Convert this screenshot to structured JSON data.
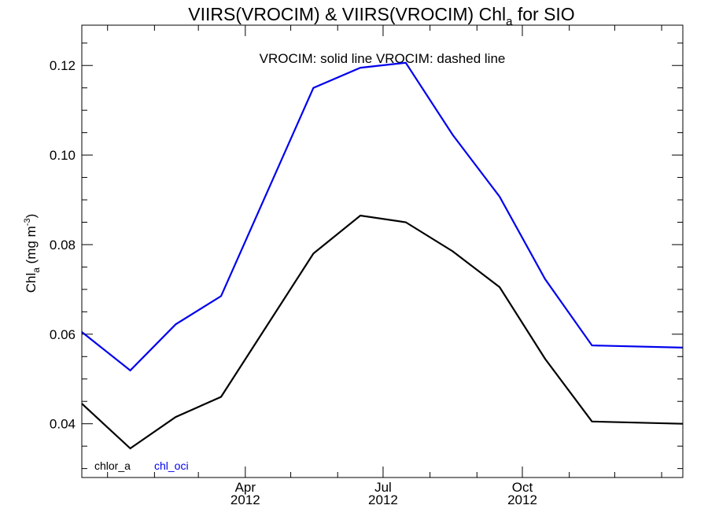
{
  "chart_data": {
    "type": "line",
    "title": {
      "main": "VIIRS(VROCIM) & VIIRS(VROCIM)  Chl",
      "sub": "a",
      "tail": " for SIO"
    },
    "annotation": "VROCIM: solid line   VROCIM: dashed line",
    "ylabel": {
      "main": "Chl",
      "sub": "a",
      "unit_open": " (mg m",
      "sup": "-3",
      "unit_close": ")"
    },
    "ylim": [
      0.028,
      0.129
    ],
    "yticks": [
      {
        "value": 0.04,
        "label": "0.04"
      },
      {
        "value": 0.06,
        "label": "0.06"
      },
      {
        "value": 0.08,
        "label": "0.08"
      },
      {
        "value": 0.1,
        "label": "0.10"
      },
      {
        "value": 0.12,
        "label": "0.12"
      }
    ],
    "xlim": [
      "2011-12-15",
      "2013-01-15"
    ],
    "xticks": [
      {
        "date": "2012-04-01",
        "label": "Apr",
        "year": "2012"
      },
      {
        "date": "2012-07-01",
        "label": "Jul",
        "year": "2012"
      },
      {
        "date": "2012-10-01",
        "label": "Oct",
        "year": "2012"
      }
    ],
    "x": [
      "2011-12-15",
      "2012-01-16",
      "2012-02-15",
      "2012-03-16",
      "2012-05-16",
      "2012-06-16",
      "2012-07-16",
      "2012-08-16",
      "2012-09-16",
      "2012-10-16",
      "2012-11-16",
      "2013-01-15"
    ],
    "series": [
      {
        "name": "chlor_a",
        "color": "#000000",
        "values": [
          0.0445,
          0.0345,
          0.0415,
          0.046,
          0.078,
          0.0865,
          0.085,
          0.0785,
          0.0705,
          0.0545,
          0.0405,
          0.04
        ]
      },
      {
        "name": "chl_oci",
        "color": "#0000ee",
        "values": [
          0.0605,
          0.0519,
          0.0622,
          0.0685,
          0.115,
          0.1195,
          0.1206,
          0.1045,
          0.0907,
          0.0723,
          0.0575,
          0.057
        ]
      }
    ],
    "grid": false,
    "legend_position": "bottom-left"
  }
}
